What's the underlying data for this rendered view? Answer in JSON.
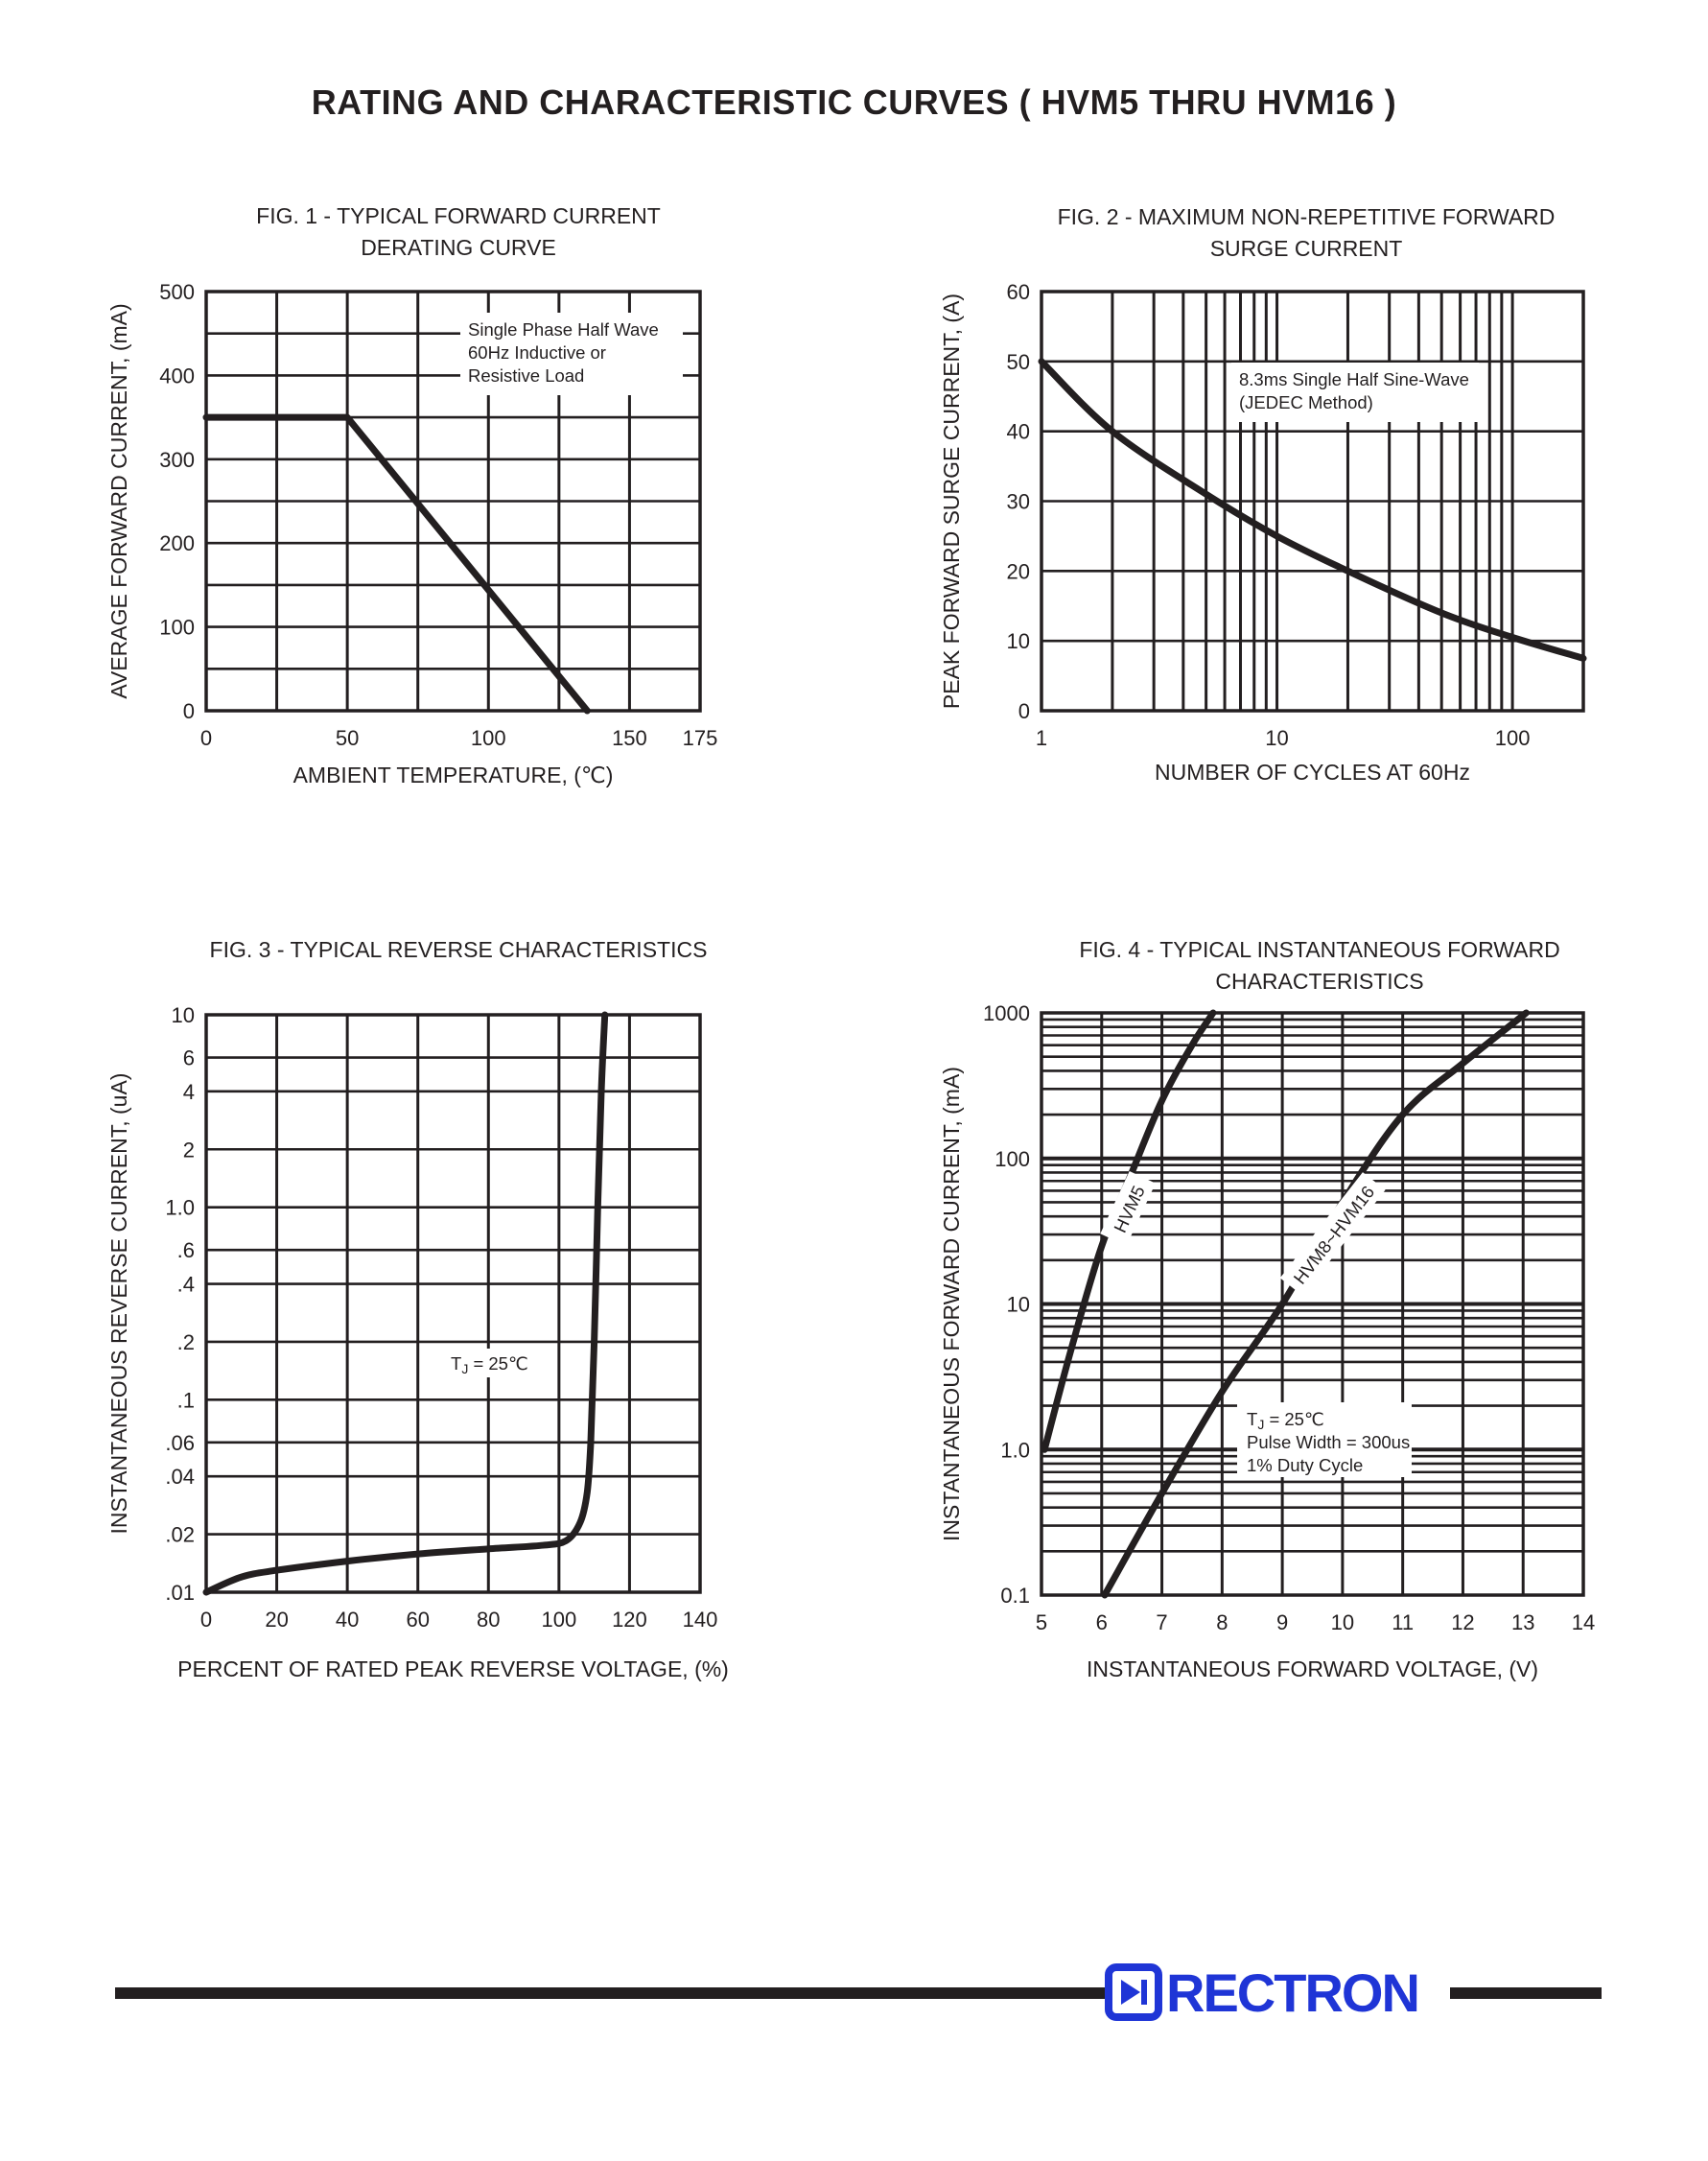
{
  "page_title": "RATING AND CHARACTERISTIC CURVES ( HVM5 THRU HVM16 )",
  "logo": {
    "brand": "RECTRON",
    "color": "#1f35d6"
  },
  "colors": {
    "ink": "#231f20",
    "brand": "#1f35d6"
  },
  "chart_data": [
    {
      "id": "fig1",
      "type": "line",
      "title": [
        "FIG. 1 - TYPICAL FORWARD CURRENT",
        "DERATING CURVE"
      ],
      "xlabel": "AMBIENT TEMPERATURE, (℃)",
      "ylabel": "AVERAGE FORWARD CURRENT, (mA)",
      "xscale": "linear",
      "yscale": "linear",
      "xlim": [
        0,
        175
      ],
      "ylim": [
        0,
        500
      ],
      "xticks": [
        0,
        50,
        100,
        150,
        175
      ],
      "xtick_labels": [
        "0",
        "50",
        "100",
        "150",
        "175"
      ],
      "yticks": [
        0,
        100,
        200,
        300,
        400,
        500
      ],
      "ytick_labels": [
        "0",
        "100",
        "200",
        "300",
        "400",
        "500"
      ],
      "grid_x": [
        25,
        50,
        75,
        100,
        125,
        150
      ],
      "grid_y": [
        50,
        100,
        150,
        200,
        250,
        300,
        350,
        400,
        450
      ],
      "grid": true,
      "annotation": [
        "Single Phase Half Wave",
        "60Hz Inductive or",
        "Resistive Load"
      ],
      "annotation_position": "top-right",
      "series": [
        {
          "x": [
            0,
            50,
            135
          ],
          "y": [
            350,
            350,
            0
          ]
        }
      ]
    },
    {
      "id": "fig2",
      "type": "line",
      "title": [
        "FIG. 2 - MAXIMUM NON-REPETITIVE FORWARD",
        "SURGE CURRENT"
      ],
      "xlabel": "NUMBER OF CYCLES AT 60Hz",
      "ylabel": "PEAK FORWARD SURGE CURRENT, (A)",
      "xscale": "log",
      "yscale": "linear",
      "xlim": [
        1,
        200
      ],
      "ylim": [
        0,
        60
      ],
      "xticks": [
        1,
        10,
        100
      ],
      "xtick_labels": [
        "1",
        "10",
        "100"
      ],
      "yticks": [
        0,
        10,
        20,
        30,
        40,
        50,
        60
      ],
      "ytick_labels": [
        "0",
        "10",
        "20",
        "30",
        "40",
        "50",
        "60"
      ],
      "grid_x": [
        2,
        3,
        4,
        5,
        6,
        7,
        8,
        9,
        10,
        20,
        30,
        40,
        50,
        60,
        70,
        80,
        90,
        100
      ],
      "grid_y": [
        10,
        20,
        30,
        40,
        50
      ],
      "grid": true,
      "annotation": [
        "8.3ms Single Half Sine-Wave",
        "(JEDEC Method)"
      ],
      "annotation_position": "top-center",
      "series": [
        {
          "x": [
            1,
            2,
            5,
            10,
            20,
            50,
            100,
            200
          ],
          "y": [
            50,
            40,
            31,
            25,
            20,
            14,
            10.5,
            7.5
          ]
        }
      ]
    },
    {
      "id": "fig3",
      "type": "line",
      "title": [
        "FIG. 3 - TYPICAL REVERSE CHARACTERISTICS"
      ],
      "xlabel": "PERCENT OF RATED PEAK REVERSE VOLTAGE, (%)",
      "ylabel": "INSTANTANEOUS REVERSE CURRENT, (uA)",
      "xscale": "linear",
      "yscale": "log",
      "xlim": [
        0,
        140
      ],
      "ylim": [
        0.01,
        10
      ],
      "xticks": [
        0,
        20,
        40,
        60,
        80,
        100,
        120,
        140
      ],
      "xtick_labels": [
        "0",
        "20",
        "40",
        "60",
        "80",
        "100",
        "120",
        "140"
      ],
      "yticks": [
        0.01,
        0.02,
        0.04,
        0.06,
        0.1,
        0.2,
        0.4,
        0.6,
        1,
        2,
        4,
        6,
        10
      ],
      "ytick_labels": [
        ".01",
        ".02",
        ".04",
        ".06",
        ".1",
        ".2",
        ".4",
        ".6",
        "1.0",
        "2",
        "4",
        "6",
        "10"
      ],
      "grid_x": [
        20,
        40,
        60,
        80,
        100,
        120
      ],
      "grid_y": [
        0.02,
        0.04,
        0.06,
        0.1,
        0.2,
        0.4,
        0.6,
        1,
        2,
        4,
        6
      ],
      "grid": true,
      "annotation": [
        "T",
        "J",
        " = 25℃"
      ],
      "annotation_position": "center",
      "series": [
        {
          "x": [
            0,
            10,
            20,
            40,
            60,
            80,
            95,
            102,
            106,
            108,
            109,
            110,
            111,
            112,
            113
          ],
          "y": [
            0.01,
            0.012,
            0.013,
            0.0145,
            0.0158,
            0.0168,
            0.0175,
            0.0185,
            0.023,
            0.033,
            0.06,
            0.2,
            1,
            4,
            10
          ]
        }
      ]
    },
    {
      "id": "fig4",
      "type": "line",
      "title": [
        "FIG. 4 - TYPICAL INSTANTANEOUS FORWARD",
        "CHARACTERISTICS"
      ],
      "xlabel": "INSTANTANEOUS FORWARD VOLTAGE, (V)",
      "ylabel": "INSTANTANEOUS FORWARD CURRENT, (mA)",
      "xscale": "linear",
      "yscale": "log",
      "xlim": [
        5,
        14
      ],
      "ylim": [
        0.1,
        1000
      ],
      "xticks": [
        5,
        6,
        7,
        8,
        9,
        10,
        11,
        12,
        13,
        14
      ],
      "xtick_labels": [
        "5",
        "6",
        "7",
        "8",
        "9",
        "10",
        "11",
        "12",
        "13",
        "14"
      ],
      "yticks": [
        0.1,
        1,
        10,
        100,
        1000
      ],
      "ytick_labels": [
        "0.1",
        "1.0",
        "10",
        "100",
        "1000"
      ],
      "grid_x": [
        6,
        7,
        8,
        9,
        10,
        11,
        12,
        13
      ],
      "grid_y_log_minor": true,
      "grid": true,
      "annotation": [
        "T",
        "J",
        " = 25℃",
        "Pulse Width = 300us",
        "1% Duty Cycle"
      ],
      "annotation_position": "bottom-center",
      "series": [
        {
          "name": "HVM5",
          "x": [
            5.05,
            5.5,
            6,
            6.5,
            7,
            7.5,
            7.85
          ],
          "y": [
            1,
            5,
            25,
            80,
            250,
            600,
            1000
          ]
        },
        {
          "name": "HVM8~HVM16",
          "x": [
            6.05,
            7,
            8,
            9,
            10,
            11,
            12,
            13.05
          ],
          "y": [
            0.1,
            0.5,
            2.5,
            10,
            50,
            200,
            450,
            1000
          ]
        }
      ]
    }
  ]
}
